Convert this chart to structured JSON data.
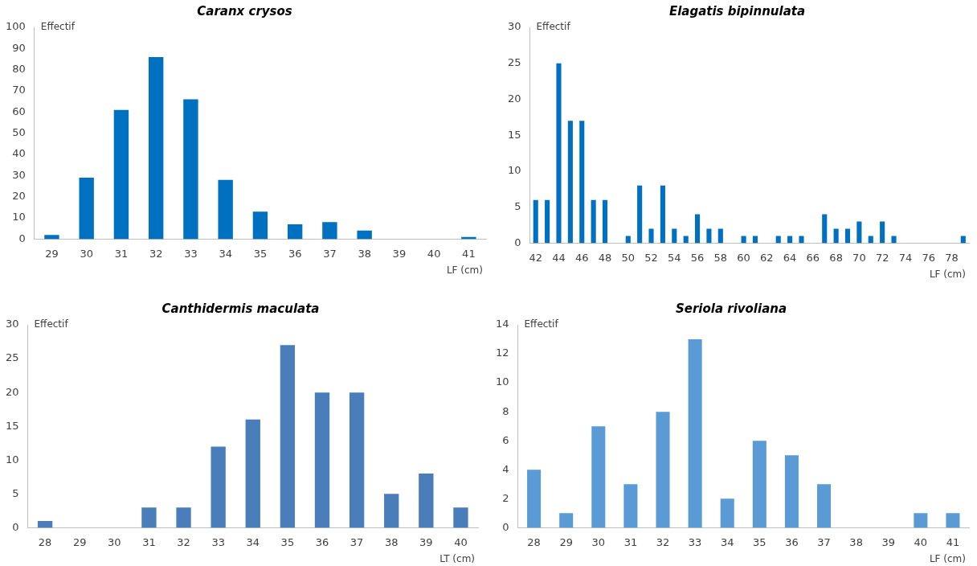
{
  "chart_data": [
    {
      "type": "bar",
      "title": "Caranx crysos",
      "ylabel": "Effectif",
      "xlabel": "LF (cm)",
      "categories": [
        "29",
        "30",
        "31",
        "32",
        "33",
        "34",
        "35",
        "36",
        "37",
        "38",
        "39",
        "40",
        "41"
      ],
      "values": [
        2,
        29,
        61,
        86,
        66,
        28,
        13,
        7,
        8,
        4,
        0,
        0,
        1
      ],
      "color": "#0070c0",
      "ylim": [
        0,
        100
      ],
      "yticks": [
        0,
        10,
        20,
        30,
        40,
        50,
        60,
        70,
        80,
        90,
        100
      ],
      "grid": false,
      "legend": false
    },
    {
      "type": "bar",
      "title": "Elagatis bipinnulata",
      "ylabel": "Effectif",
      "xlabel": "LF (cm)",
      "categories": [
        "42",
        null,
        "44",
        null,
        "46",
        null,
        "48",
        null,
        "50",
        null,
        "52",
        null,
        "54",
        null,
        "56",
        null,
        "58",
        null,
        "60",
        null,
        "62",
        null,
        "64",
        null,
        "66",
        null,
        "68",
        null,
        "70",
        null,
        "72",
        null,
        "74",
        null,
        "76",
        null,
        "78",
        null
      ],
      "values": [
        6,
        6,
        25,
        17,
        17,
        6,
        6,
        0,
        1,
        8,
        2,
        8,
        2,
        1,
        4,
        2,
        2,
        0,
        1,
        1,
        0,
        1,
        1,
        1,
        0,
        4,
        2,
        2,
        3,
        1,
        3,
        1,
        0,
        0,
        0,
        0,
        0,
        1
      ],
      "color": "#0070c0",
      "ylim": [
        0,
        30
      ],
      "yticks": [
        0,
        5,
        10,
        15,
        20,
        25,
        30
      ],
      "grid": false,
      "legend": false
    },
    {
      "type": "bar",
      "title": "Canthidermis maculata",
      "ylabel": "Effectif",
      "xlabel": "LT (cm)",
      "categories": [
        "28",
        "29",
        "30",
        "31",
        "32",
        "33",
        "34",
        "35",
        "36",
        "37",
        "38",
        "39",
        "40"
      ],
      "values": [
        1,
        0,
        0,
        3,
        3,
        12,
        16,
        27,
        20,
        20,
        5,
        8,
        3
      ],
      "color": "#4a7ebb",
      "ylim": [
        0,
        30
      ],
      "yticks": [
        0,
        5,
        10,
        15,
        20,
        25,
        30
      ],
      "grid": false,
      "legend": false
    },
    {
      "type": "bar",
      "title": "Seriola rivoliana",
      "ylabel": "Effectif",
      "xlabel": "LF (cm)",
      "categories": [
        "28",
        "29",
        "30",
        "31",
        "32",
        "33",
        "34",
        "35",
        "36",
        "37",
        "38",
        "39",
        "40",
        "41"
      ],
      "values": [
        4,
        1,
        7,
        3,
        8,
        13,
        2,
        6,
        5,
        3,
        0,
        0,
        1,
        1
      ],
      "color": "#5b9bd5",
      "ylim": [
        0,
        14
      ],
      "yticks": [
        0,
        2,
        4,
        6,
        8,
        10,
        12,
        14
      ],
      "grid": false,
      "legend": false
    }
  ]
}
